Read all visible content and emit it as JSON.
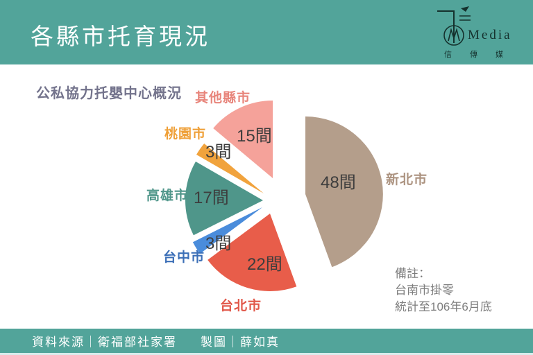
{
  "header": {
    "title": "各縣市托育現況",
    "logo": {
      "media": "Media",
      "cjk": "信傳媒"
    }
  },
  "subtitle": "公私協力托嬰中心概況",
  "chart_data": {
    "type": "pie",
    "title": "公私協力托嬰中心概況",
    "unit": "間",
    "total": 108,
    "start_angle_deg": 0,
    "direction": "clockwise",
    "center": [
      395,
      289
    ],
    "radius": 112,
    "exploded": true,
    "slices": [
      {
        "name": "新北市",
        "value": 48,
        "label": "48間",
        "color": "#b49e8b",
        "label_color": "#ac9380",
        "offset": [
          45,
          -9
        ]
      },
      {
        "name": "台北市",
        "value": 22,
        "label": "22間",
        "color": "#e85d4a",
        "label_color": "#e15749",
        "offset": [
          -6,
          19
        ]
      },
      {
        "name": "台中市",
        "value": 3,
        "label": "3間",
        "color": "#4a8cdb",
        "label_color": "#3c6fb7",
        "offset": [
          -17,
          10
        ]
      },
      {
        "name": "高雄市",
        "value": 17,
        "label": "17間",
        "color": "#4f968a",
        "label_color": "#4f968a",
        "offset": [
          -16,
          0
        ]
      },
      {
        "name": "桃園市",
        "value": 3,
        "label": "3間",
        "color": "#f1a33d",
        "label_color": "#efa038",
        "offset": [
          -15,
          -10
        ]
      },
      {
        "name": "其他縣市",
        "value": 15,
        "label": "15間",
        "color": "#f5a29a",
        "label_color": "#e8857b",
        "offset": [
          -2,
          -32
        ]
      }
    ]
  },
  "note": {
    "lines": [
      "備註：",
      "台南市掛零",
      "統計至106年6月底"
    ]
  },
  "footer": {
    "source": "資料來源｜衛福部社家署",
    "credit": "製圖｜薛如真"
  },
  "colors": {
    "theme_teal": "#52a49a",
    "subtitle": "#73738c",
    "value_label": "#3d3d3d",
    "note_gray": "#7d7d7d",
    "background": "#ffffff"
  }
}
